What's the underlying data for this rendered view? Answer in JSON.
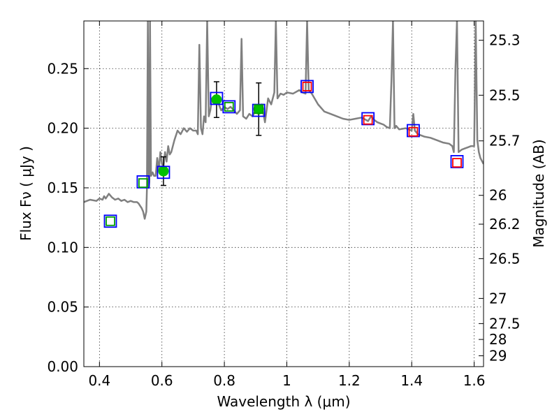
{
  "chart_data": {
    "type": "scatter",
    "title": "",
    "xlabel": "Wavelength  λ (μm)",
    "ylabel": "Flux  Fν  ( μJy )",
    "ylabel_right": "Magnitude (AB)",
    "xlim": [
      0.35,
      1.63
    ],
    "ylim": [
      0.0,
      0.29
    ],
    "grid": true,
    "x_ticks": [
      0.4,
      0.6,
      0.8,
      1.0,
      1.2,
      1.4,
      1.6
    ],
    "x_tick_labels": [
      "0.4",
      "0.6",
      "0.8",
      "1",
      "1.2",
      "1.4",
      "1.6"
    ],
    "y_ticks": [
      0.0,
      0.05,
      0.1,
      0.15,
      0.2,
      0.25
    ],
    "y_tick_labels": [
      "0.00",
      "0.05",
      "0.10",
      "0.15",
      "0.20",
      "0.25"
    ],
    "right_ticks": [
      {
        "label": "25.3",
        "flux": 0.2738
      },
      {
        "label": "25.5",
        "flux": 0.2277
      },
      {
        "label": "25.7",
        "flux": 0.1894
      },
      {
        "label": "26",
        "flux": 0.1437
      },
      {
        "label": "26.2",
        "flux": 0.1195
      },
      {
        "label": "26.5",
        "flux": 0.0906
      },
      {
        "label": "27",
        "flux": 0.0572
      },
      {
        "label": "27.5",
        "flux": 0.0361
      },
      {
        "label": "28",
        "flux": 0.0228
      },
      {
        "label": "29",
        "flux": 0.0091
      }
    ],
    "series": [
      {
        "style": "line",
        "color": "#808080",
        "x": [
          0.35,
          0.37,
          0.39,
          0.4,
          0.41,
          0.415,
          0.42,
          0.43,
          0.44,
          0.45,
          0.46,
          0.47,
          0.48,
          0.49,
          0.5,
          0.51,
          0.52,
          0.525,
          0.53,
          0.535,
          0.54,
          0.545,
          0.55,
          0.552,
          0.555,
          0.558,
          0.56,
          0.562,
          0.565,
          0.57,
          0.575,
          0.58,
          0.585,
          0.59,
          0.595,
          0.6,
          0.605,
          0.61,
          0.615,
          0.62,
          0.625,
          0.63,
          0.64,
          0.65,
          0.66,
          0.67,
          0.68,
          0.69,
          0.7,
          0.71,
          0.715,
          0.72,
          0.725,
          0.73,
          0.735,
          0.74,
          0.745,
          0.75,
          0.755,
          0.76,
          0.77,
          0.775,
          0.78,
          0.785,
          0.79,
          0.8,
          0.81,
          0.82,
          0.83,
          0.84,
          0.85,
          0.855,
          0.86,
          0.87,
          0.88,
          0.89,
          0.9,
          0.91,
          0.92,
          0.93,
          0.94,
          0.95,
          0.96,
          0.965,
          0.97,
          0.98,
          0.99,
          1.0,
          1.02,
          1.04,
          1.05,
          1.06,
          1.065,
          1.07,
          1.08,
          1.1,
          1.12,
          1.14,
          1.16,
          1.18,
          1.2,
          1.22,
          1.24,
          1.26,
          1.27,
          1.28,
          1.29,
          1.3,
          1.31,
          1.32,
          1.33,
          1.335,
          1.34,
          1.345,
          1.35,
          1.36,
          1.38,
          1.4,
          1.405,
          1.41,
          1.42,
          1.44,
          1.46,
          1.48,
          1.5,
          1.52,
          1.53,
          1.535,
          1.54,
          1.545,
          1.55,
          1.56,
          1.57,
          1.58,
          1.59,
          1.6,
          1.605,
          1.61,
          1.615,
          1.62,
          1.63
        ],
        "y": [
          0.138,
          0.14,
          0.139,
          0.141,
          0.14,
          0.143,
          0.141,
          0.145,
          0.142,
          0.14,
          0.141,
          0.139,
          0.14,
          0.138,
          0.139,
          0.138,
          0.138,
          0.137,
          0.135,
          0.133,
          0.13,
          0.124,
          0.13,
          0.15,
          0.29,
          0.15,
          0.155,
          0.29,
          0.16,
          0.163,
          0.16,
          0.16,
          0.175,
          0.165,
          0.18,
          0.17,
          0.168,
          0.18,
          0.172,
          0.185,
          0.178,
          0.18,
          0.19,
          0.198,
          0.195,
          0.2,
          0.197,
          0.2,
          0.198,
          0.198,
          0.195,
          0.27,
          0.2,
          0.195,
          0.21,
          0.205,
          0.29,
          0.21,
          0.215,
          0.225,
          0.225,
          0.22,
          0.222,
          0.218,
          0.215,
          0.218,
          0.216,
          0.218,
          0.215,
          0.212,
          0.215,
          0.275,
          0.21,
          0.208,
          0.212,
          0.21,
          0.215,
          0.212,
          0.22,
          0.205,
          0.225,
          0.22,
          0.23,
          0.29,
          0.225,
          0.229,
          0.228,
          0.23,
          0.229,
          0.232,
          0.23,
          0.229,
          0.29,
          0.232,
          0.229,
          0.22,
          0.214,
          0.212,
          0.21,
          0.208,
          0.207,
          0.208,
          0.209,
          0.206,
          0.21,
          0.207,
          0.205,
          0.204,
          0.203,
          0.201,
          0.2,
          0.24,
          0.29,
          0.2,
          0.202,
          0.199,
          0.2,
          0.198,
          0.212,
          0.198,
          0.195,
          0.193,
          0.192,
          0.19,
          0.188,
          0.187,
          0.185,
          0.18,
          0.25,
          0.29,
          0.18,
          0.182,
          0.183,
          0.184,
          0.185,
          0.185,
          0.29,
          0.19,
          0.18,
          0.175,
          0.17
        ],
        "label": ""
      },
      {
        "style": "errorbar",
        "marker": "circle",
        "color": "#00c000",
        "x": [
          0.605,
          0.775,
          0.91
        ],
        "y": [
          0.164,
          0.224,
          0.216
        ],
        "yerr": [
          0.012,
          0.015,
          0.022
        ],
        "label": ""
      },
      {
        "style": "square",
        "color": "#0000ff",
        "size": "large",
        "x": [
          0.435,
          0.54,
          0.605,
          0.775,
          0.815,
          0.91,
          1.065,
          1.26,
          1.405,
          1.545
        ],
        "y": [
          0.122,
          0.155,
          0.163,
          0.225,
          0.218,
          0.215,
          0.235,
          0.208,
          0.198,
          0.172
        ],
        "label": ""
      },
      {
        "style": "square",
        "color": "#00a000",
        "size": "small",
        "x": [
          0.435,
          0.54,
          0.815,
          0.91
        ],
        "y": [
          0.122,
          0.154,
          0.218,
          0.216
        ],
        "label": ""
      },
      {
        "style": "square",
        "color": "#ff0000",
        "size": "small",
        "x": [
          1.065,
          1.26,
          1.405,
          1.545
        ],
        "y": [
          0.235,
          0.207,
          0.197,
          0.171
        ],
        "label": ""
      }
    ]
  }
}
